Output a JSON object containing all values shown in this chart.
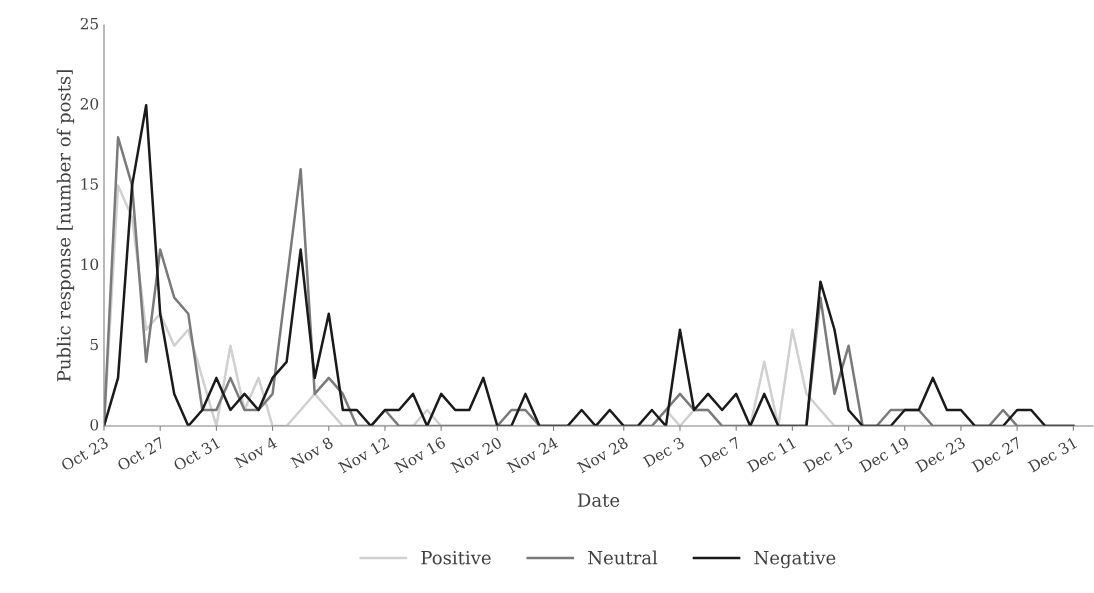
{
  "chart_data": {
    "type": "line",
    "xlabel": "Date",
    "ylabel": "Public response [number of posts]",
    "categories": [
      "Oct 23",
      null,
      null,
      null,
      "Oct 27",
      null,
      null,
      null,
      "Oct 31",
      null,
      null,
      null,
      "Nov 4",
      null,
      null,
      null,
      "Nov 8",
      null,
      null,
      null,
      "Nov 12",
      null,
      null,
      null,
      "Nov 16",
      null,
      null,
      null,
      "Nov 20",
      null,
      null,
      null,
      "Nov 24",
      null,
      null,
      null,
      null,
      "Nov 28",
      null,
      null,
      null,
      "Dec 3",
      null,
      null,
      null,
      "Dec 7",
      null,
      null,
      null,
      "Dec 11",
      null,
      null,
      null,
      "Dec 15",
      null,
      null,
      null,
      "Dec 19",
      null,
      null,
      null,
      "Dec 23",
      null,
      null,
      null,
      "Dec 27",
      null,
      null,
      null,
      "Dec 31"
    ],
    "series": [
      {
        "name": "Positive",
        "color": "#d0d0d0",
        "values": [
          0,
          15,
          13,
          6,
          7,
          5,
          6,
          3,
          0,
          5,
          1,
          3,
          0,
          0,
          1,
          2,
          1,
          0,
          0,
          0,
          0,
          0,
          0,
          1,
          0,
          0,
          0,
          0,
          0,
          0,
          0,
          0,
          0,
          0,
          0,
          0,
          1,
          0,
          0,
          0,
          1,
          0,
          1,
          1,
          0,
          0,
          0,
          4,
          0,
          6,
          2,
          1,
          0,
          0,
          0,
          0,
          0,
          0,
          0,
          0,
          0,
          0,
          0,
          0,
          0,
          0,
          0,
          0,
          0,
          0
        ]
      },
      {
        "name": "Neutral",
        "color": "#7a7a7a",
        "values": [
          0,
          18,
          15,
          4,
          11,
          8,
          7,
          1,
          1,
          3,
          1,
          1,
          2,
          9,
          16,
          2,
          3,
          2,
          0,
          0,
          1,
          0,
          0,
          0,
          0,
          0,
          0,
          0,
          0,
          1,
          1,
          0,
          0,
          0,
          0,
          0,
          0,
          0,
          0,
          0,
          1,
          2,
          1,
          1,
          0,
          0,
          0,
          0,
          0,
          0,
          0,
          8,
          2,
          5,
          0,
          0,
          1,
          1,
          1,
          0,
          0,
          0,
          0,
          0,
          1,
          0,
          0,
          0,
          0,
          0
        ]
      },
      {
        "name": "Negative",
        "color": "#1a1a1a",
        "values": [
          0,
          3,
          15,
          20,
          7,
          2,
          0,
          1,
          3,
          1,
          2,
          1,
          3,
          4,
          11,
          3,
          7,
          1,
          1,
          0,
          1,
          1,
          2,
          0,
          2,
          1,
          1,
          3,
          0,
          0,
          2,
          0,
          0,
          0,
          1,
          0,
          1,
          0,
          0,
          1,
          0,
          6,
          1,
          2,
          1,
          2,
          0,
          2,
          0,
          0,
          0,
          9,
          6,
          1,
          0,
          0,
          0,
          1,
          1,
          3,
          1,
          1,
          0,
          0,
          0,
          1,
          1,
          0,
          0,
          0
        ]
      }
    ],
    "ylim": [
      0,
      25
    ],
    "yticks": [
      0,
      5,
      10,
      15,
      20,
      25
    ],
    "grid": false,
    "legend": "bottom",
    "marker": "none",
    "line_style": "solid"
  }
}
